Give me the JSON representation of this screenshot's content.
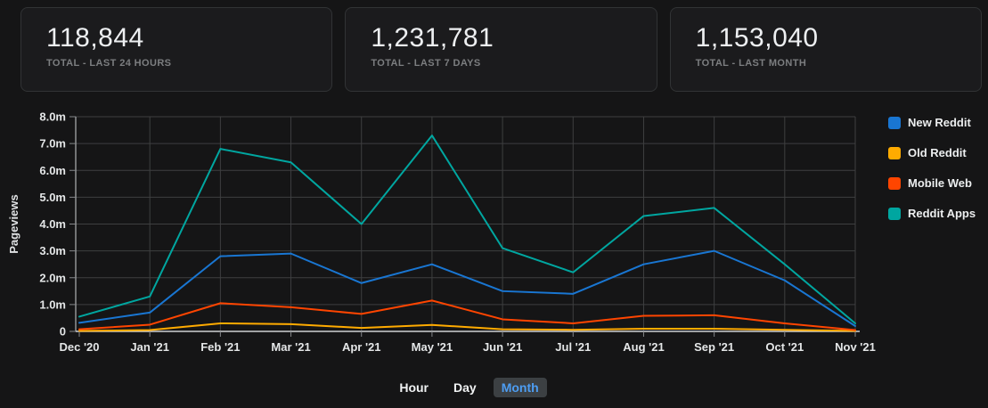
{
  "cards": [
    {
      "value": "118,844",
      "label": "TOTAL - LAST 24 HOURS"
    },
    {
      "value": "1,231,781",
      "label": "TOTAL - LAST 7 DAYS"
    },
    {
      "value": "1,153,040",
      "label": "TOTAL - LAST MONTH"
    }
  ],
  "chart_data": {
    "type": "line",
    "title": "",
    "xlabel": "",
    "ylabel": "Pageviews",
    "categories": [
      "Dec '20",
      "Jan '21",
      "Feb '21",
      "Mar '21",
      "Apr '21",
      "May '21",
      "Jun '21",
      "Jul '21",
      "Aug '21",
      "Sep '21",
      "Oct '21",
      "Nov '21"
    ],
    "y_tick_labels": [
      "0",
      "1.0m",
      "2.0m",
      "3.0m",
      "4.0m",
      "5.0m",
      "6.0m",
      "7.0m",
      "8.0m"
    ],
    "ylim": [
      0,
      8000000
    ],
    "grid": true,
    "legend_position": "right",
    "series": [
      {
        "name": "New Reddit",
        "color": "#1976d2",
        "values": [
          320000,
          700000,
          2800000,
          2900000,
          1800000,
          2500000,
          1500000,
          1400000,
          2500000,
          3000000,
          1900000,
          200000
        ]
      },
      {
        "name": "Old Reddit",
        "color": "#ffab00",
        "values": [
          20000,
          50000,
          300000,
          270000,
          130000,
          240000,
          80000,
          60000,
          100000,
          100000,
          60000,
          20000
        ]
      },
      {
        "name": "Mobile Web",
        "color": "#ff4500",
        "values": [
          80000,
          250000,
          1050000,
          900000,
          650000,
          1150000,
          450000,
          300000,
          580000,
          600000,
          300000,
          50000
        ]
      },
      {
        "name": "Reddit Apps",
        "color": "#00a6a0",
        "values": [
          550000,
          1300000,
          6800000,
          6300000,
          4000000,
          7300000,
          3100000,
          2200000,
          4300000,
          4600000,
          2500000,
          300000
        ]
      }
    ],
    "colors": {
      "gridline": "#3e3f40",
      "axis_line": "#cfd2d4",
      "tick": "#85878a",
      "axis_text": "#e4e6e7"
    }
  },
  "toggle": {
    "options": [
      {
        "label": "Hour",
        "active": false
      },
      {
        "label": "Day",
        "active": false
      },
      {
        "label": "Month",
        "active": true
      }
    ],
    "active_color": "#4d9df2"
  }
}
